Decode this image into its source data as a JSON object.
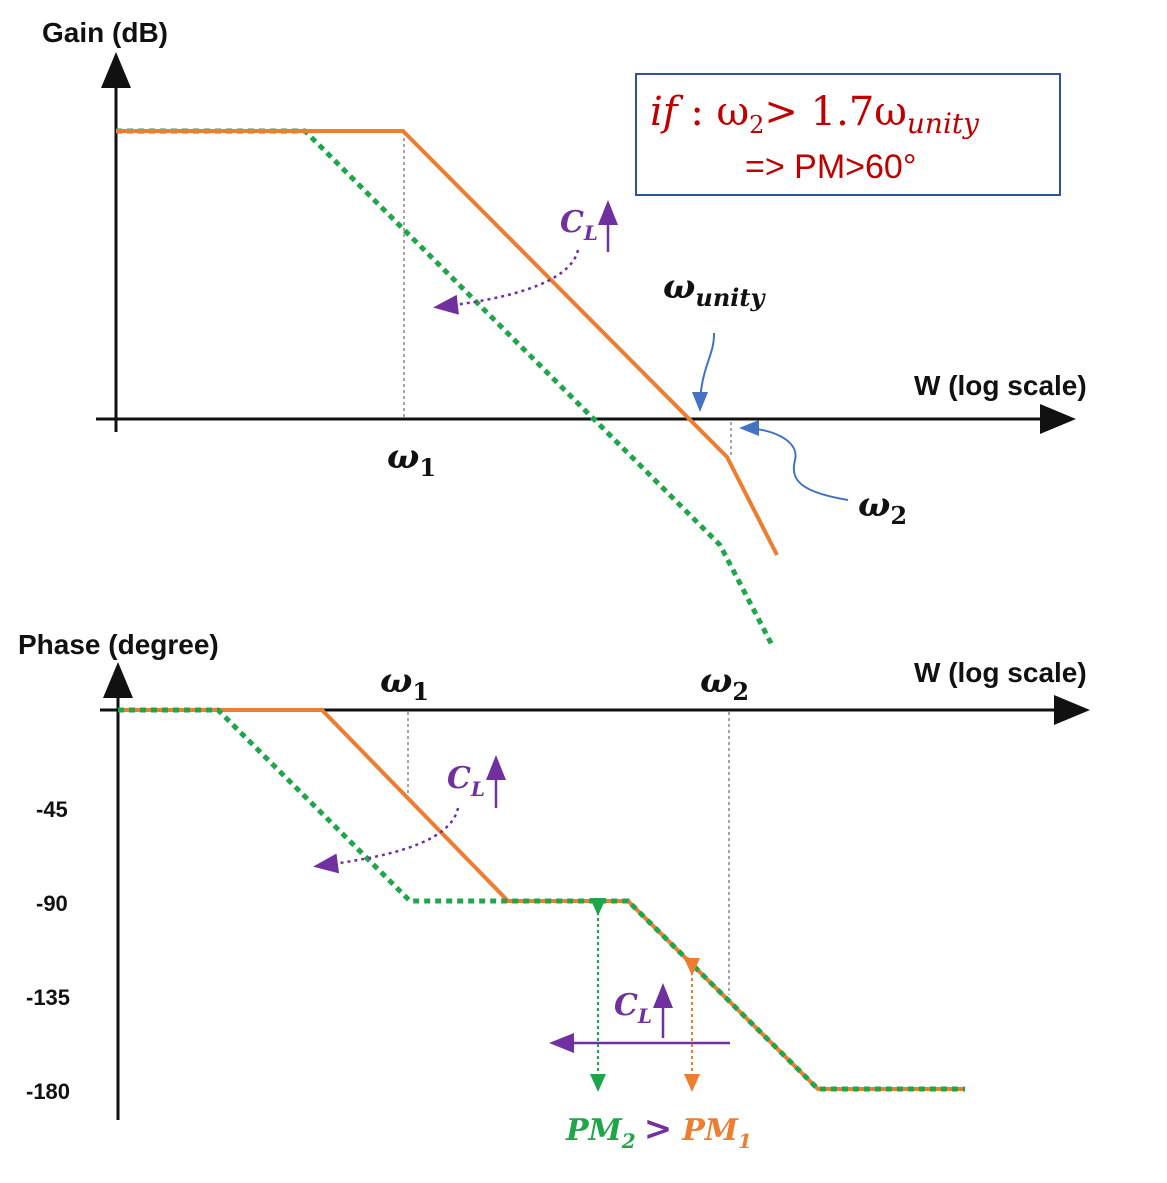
{
  "gain_plot": {
    "y_label": "Gain (dB)",
    "x_label": "W (log scale)",
    "w1_label": "ω",
    "w1_sub": "1",
    "wunity_label": "ω",
    "wunity_sub": "unity",
    "w2_label": "ω",
    "w2_sub": "2",
    "cl_label": "C",
    "cl_sub": "L",
    "annotation": {
      "line1_if": "if",
      "line1_colon": " : ω",
      "line1_sub2": "2",
      "line1_rest": "> 1.7ω",
      "line1_sub_unity": "unity",
      "line2": "=>  PM>60°"
    }
  },
  "phase_plot": {
    "y_label": "Phase (degree)",
    "x_label": "W (log scale)",
    "w1_label": "ω",
    "w1_sub": "1",
    "w2_label": "ω",
    "w2_sub": "2",
    "y_ticks": [
      "-45",
      "-90",
      "-135",
      "-180"
    ],
    "cl_label": "C",
    "cl_sub": "L",
    "cl2_label": "C",
    "cl2_sub": "L",
    "pm2_label": "PM",
    "pm2_sub": "2",
    "gt": ">",
    "pm1_label": "PM",
    "pm1_sub": "1"
  },
  "colors": {
    "orange": "#ed7d31",
    "green": "#1fa64a",
    "purple": "#7030a0",
    "blue": "#4472c4",
    "red": "#c00000",
    "box_border": "#2f5597"
  }
}
